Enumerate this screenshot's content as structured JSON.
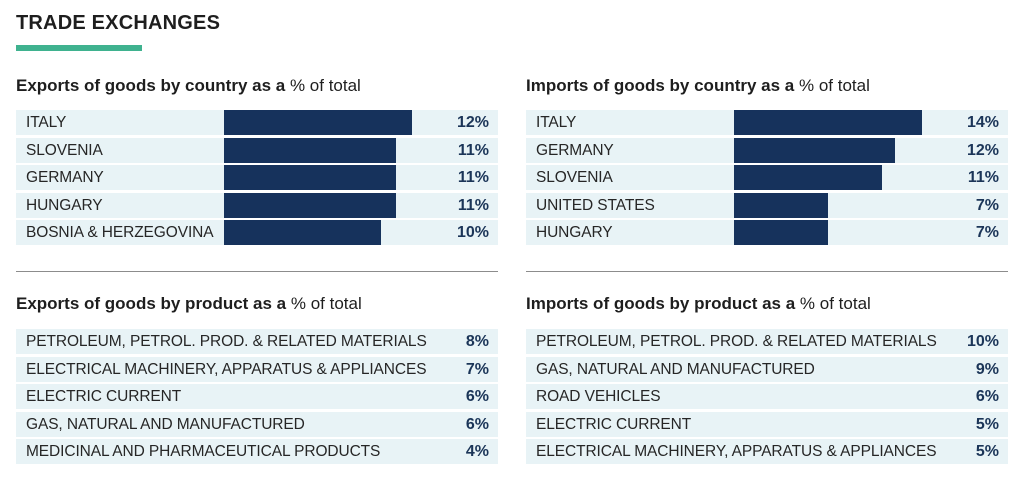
{
  "header": {
    "title": "TRADE EXCHANGES"
  },
  "chart_data": [
    {
      "type": "bar",
      "id": "exports_country",
      "title_bold": "Exports of goods by country as a",
      "title_light": "% of total",
      "categories": [
        "ITALY",
        "SLOVENIA",
        "GERMANY",
        "HUNGARY",
        "BOSNIA & HERZEGOVINA"
      ],
      "values": [
        12,
        11,
        11,
        11,
        10
      ],
      "labels": [
        "12%",
        "11%",
        "11%",
        "11%",
        "10%"
      ],
      "max": 12
    },
    {
      "type": "bar",
      "id": "imports_country",
      "title_bold": "Imports of goods by country as a",
      "title_light": "% of total",
      "categories": [
        "ITALY",
        "GERMANY",
        "SLOVENIA",
        "UNITED STATES",
        "HUNGARY"
      ],
      "values": [
        14,
        12,
        11,
        7,
        7
      ],
      "labels": [
        "14%",
        "12%",
        "11%",
        "7%",
        "7%"
      ],
      "max": 14
    },
    {
      "type": "table",
      "id": "exports_product",
      "title_bold": "Exports of goods by product as a",
      "title_light": "% of total",
      "categories": [
        "PETROLEUM, PETROL. PROD. & RELATED MATERIALS",
        "ELECTRICAL MACHINERY, APPARATUS & APPLIANCES",
        "ELECTRIC CURRENT",
        "GAS, NATURAL AND MANUFACTURED",
        "MEDICINAL AND PHARMACEUTICAL PRODUCTS"
      ],
      "values": [
        8,
        7,
        6,
        6,
        4
      ],
      "labels": [
        "8%",
        "7%",
        "6%",
        "6%",
        "4%"
      ]
    },
    {
      "type": "table",
      "id": "imports_product",
      "title_bold": "Imports of goods by product as a",
      "title_light": "% of total",
      "categories": [
        "PETROLEUM, PETROL. PROD. & RELATED MATERIALS",
        "GAS, NATURAL AND MANUFACTURED",
        "ROAD VEHICLES",
        "ELECTRIC CURRENT",
        "ELECTRICAL MACHINERY, APPARATUS & APPLIANCES"
      ],
      "values": [
        10,
        9,
        6,
        5,
        5
      ],
      "labels": [
        "10%",
        "9%",
        "6%",
        "5%",
        "5%"
      ]
    }
  ],
  "colors": {
    "bar": "#16325c",
    "row_bg": "#e8f3f6",
    "accent": "#3fb28f"
  }
}
